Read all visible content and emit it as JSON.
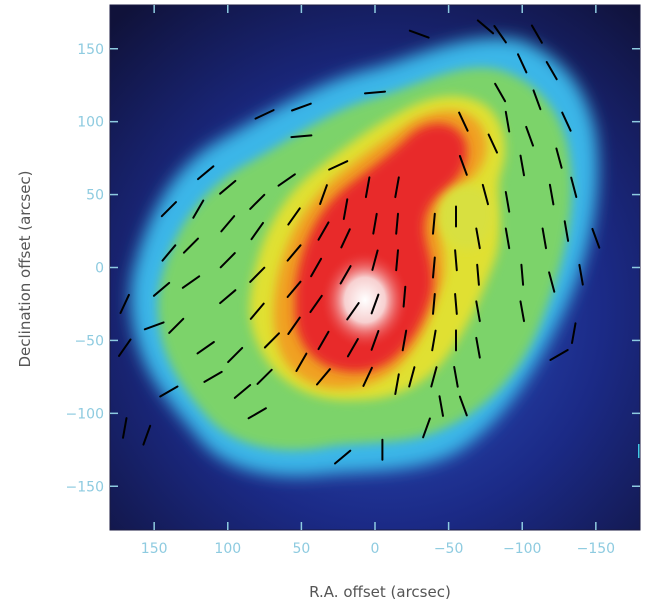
{
  "chart_data": {
    "type": "heatmap",
    "title": "",
    "xlabel": "R.A. offset (arcsec)",
    "ylabel": "Declination offset (arcsec)",
    "xlim": [
      180,
      -180
    ],
    "ylim": [
      -180,
      180
    ],
    "x_direction": "decreasing",
    "xticks": [
      150,
      100,
      50,
      0,
      -50,
      -100,
      -150
    ],
    "xtick_labels": [
      "150",
      "100",
      "50",
      "0",
      "−50",
      "−100",
      "−150"
    ],
    "yticks": [
      150,
      100,
      50,
      0,
      -50,
      -100,
      -150
    ],
    "ytick_labels": [
      "150",
      "100",
      "50",
      "0",
      "−50",
      "−100",
      "−150"
    ],
    "tick_label_color": "#8ecbe0",
    "colormap": [
      "#10123a",
      "#1b2a86",
      "#2f56c8",
      "#3ab6e8",
      "#70d888",
      "#88d040",
      "#e8e828",
      "#f0a020",
      "#e82a2a",
      "#ffffff"
    ],
    "grid": false,
    "legend": "none",
    "intensity_peak": {
      "x": 10,
      "y": -20
    },
    "vector_segments": [
      {
        "x": 170,
        "y": -110,
        "angle": 80
      },
      {
        "x": 155,
        "y": -115,
        "angle": 70
      },
      {
        "x": 140,
        "y": -85,
        "angle": 30
      },
      {
        "x": 170,
        "y": -55,
        "angle": 55
      },
      {
        "x": 170,
        "y": -25,
        "angle": 65
      },
      {
        "x": 150,
        "y": -40,
        "angle": 20
      },
      {
        "x": 145,
        "y": -15,
        "angle": 40
      },
      {
        "x": 140,
        "y": 10,
        "angle": 50
      },
      {
        "x": 140,
        "y": 40,
        "angle": 45
      },
      {
        "x": 135,
        "y": -40,
        "angle": 45
      },
      {
        "x": 125,
        "y": -10,
        "angle": 35
      },
      {
        "x": 125,
        "y": 15,
        "angle": 45
      },
      {
        "x": 120,
        "y": 40,
        "angle": 60
      },
      {
        "x": 115,
        "y": 65,
        "angle": 40
      },
      {
        "x": 100,
        "y": 55,
        "angle": 40
      },
      {
        "x": 100,
        "y": 30,
        "angle": 50
      },
      {
        "x": 100,
        "y": 5,
        "angle": 45
      },
      {
        "x": 100,
        "y": -20,
        "angle": 40
      },
      {
        "x": 115,
        "y": -55,
        "angle": 35
      },
      {
        "x": 110,
        "y": -75,
        "angle": 30
      },
      {
        "x": 95,
        "y": -60,
        "angle": 45
      },
      {
        "x": 90,
        "y": -85,
        "angle": 40
      },
      {
        "x": 80,
        "y": -100,
        "angle": 30
      },
      {
        "x": 75,
        "y": -75,
        "angle": 45
      },
      {
        "x": 70,
        "y": -50,
        "angle": 45
      },
      {
        "x": 80,
        "y": -30,
        "angle": 50
      },
      {
        "x": 80,
        "y": -5,
        "angle": 45
      },
      {
        "x": 80,
        "y": 25,
        "angle": 55
      },
      {
        "x": 80,
        "y": 45,
        "angle": 45
      },
      {
        "x": 60,
        "y": 60,
        "angle": 35
      },
      {
        "x": 55,
        "y": 35,
        "angle": 55
      },
      {
        "x": 55,
        "y": 10,
        "angle": 50
      },
      {
        "x": 55,
        "y": -15,
        "angle": 50
      },
      {
        "x": 55,
        "y": -40,
        "angle": 55
      },
      {
        "x": 50,
        "y": -65,
        "angle": 60
      },
      {
        "x": 35,
        "y": -75,
        "angle": 50
      },
      {
        "x": 35,
        "y": -50,
        "angle": 60
      },
      {
        "x": 40,
        "y": -25,
        "angle": 55
      },
      {
        "x": 40,
        "y": 0,
        "angle": 60
      },
      {
        "x": 35,
        "y": 25,
        "angle": 60
      },
      {
        "x": 35,
        "y": 50,
        "angle": 70
      },
      {
        "x": 20,
        "y": 40,
        "angle": 80
      },
      {
        "x": 20,
        "y": 20,
        "angle": 65
      },
      {
        "x": 20,
        "y": -5,
        "angle": 60
      },
      {
        "x": 15,
        "y": -30,
        "angle": 55
      },
      {
        "x": 15,
        "y": -55,
        "angle": 60
      },
      {
        "x": 5,
        "y": -75,
        "angle": 65
      },
      {
        "x": 0,
        "y": -50,
        "angle": 70
      },
      {
        "x": 0,
        "y": -25,
        "angle": 70
      },
      {
        "x": 0,
        "y": 5,
        "angle": 75
      },
      {
        "x": 0,
        "y": 30,
        "angle": 80
      },
      {
        "x": 5,
        "y": 55,
        "angle": 80
      },
      {
        "x": -15,
        "y": 55,
        "angle": 80
      },
      {
        "x": -15,
        "y": 30,
        "angle": 85
      },
      {
        "x": -15,
        "y": 5,
        "angle": 85
      },
      {
        "x": -20,
        "y": -20,
        "angle": 85
      },
      {
        "x": -20,
        "y": -50,
        "angle": 80
      },
      {
        "x": -25,
        "y": -75,
        "angle": 75
      },
      {
        "x": -40,
        "y": -75,
        "angle": 75
      },
      {
        "x": -40,
        "y": -50,
        "angle": 80
      },
      {
        "x": -40,
        "y": -25,
        "angle": 85
      },
      {
        "x": -40,
        "y": 0,
        "angle": 85
      },
      {
        "x": -40,
        "y": 30,
        "angle": 85
      },
      {
        "x": -55,
        "y": 35,
        "angle": 90
      },
      {
        "x": -55,
        "y": 5,
        "angle": 95
      },
      {
        "x": -55,
        "y": -25,
        "angle": 95
      },
      {
        "x": -55,
        "y": -50,
        "angle": 90
      },
      {
        "x": -55,
        "y": -75,
        "angle": 100
      },
      {
        "x": -70,
        "y": -55,
        "angle": 100
      },
      {
        "x": -70,
        "y": -30,
        "angle": 100
      },
      {
        "x": -70,
        "y": -5,
        "angle": 95
      },
      {
        "x": -70,
        "y": 20,
        "angle": 100
      },
      {
        "x": -75,
        "y": 50,
        "angle": 105
      },
      {
        "x": -60,
        "y": 70,
        "angle": 110
      },
      {
        "x": -80,
        "y": 85,
        "angle": 115
      },
      {
        "x": -60,
        "y": 100,
        "angle": 115
      },
      {
        "x": -85,
        "y": 120,
        "angle": 120
      },
      {
        "x": -100,
        "y": 140,
        "angle": 115
      },
      {
        "x": -110,
        "y": 115,
        "angle": 110
      },
      {
        "x": -105,
        "y": 90,
        "angle": 110
      },
      {
        "x": -100,
        "y": 70,
        "angle": 100
      },
      {
        "x": -90,
        "y": 45,
        "angle": 100
      },
      {
        "x": -90,
        "y": 20,
        "angle": 100
      },
      {
        "x": -100,
        "y": -5,
        "angle": 95
      },
      {
        "x": -100,
        "y": -30,
        "angle": 100
      },
      {
        "x": -120,
        "y": -10,
        "angle": 105
      },
      {
        "x": -115,
        "y": 20,
        "angle": 100
      },
      {
        "x": -120,
        "y": 50,
        "angle": 100
      },
      {
        "x": -125,
        "y": 75,
        "angle": 105
      },
      {
        "x": -130,
        "y": 100,
        "angle": 115
      },
      {
        "x": -135,
        "y": 55,
        "angle": 105
      },
      {
        "x": -130,
        "y": 25,
        "angle": 100
      },
      {
        "x": -140,
        "y": -5,
        "angle": 100
      },
      {
        "x": -135,
        "y": -45,
        "angle": 80
      },
      {
        "x": -125,
        "y": -60,
        "angle": 30
      },
      {
        "x": -120,
        "y": 135,
        "angle": 120
      },
      {
        "x": -110,
        "y": 160,
        "angle": 120
      },
      {
        "x": -85,
        "y": 160,
        "angle": 125
      },
      {
        "x": -90,
        "y": 100,
        "angle": 100
      },
      {
        "x": -30,
        "y": 160,
        "angle": 160
      },
      {
        "x": -75,
        "y": 165,
        "angle": 140
      },
      {
        "x": 75,
        "y": 105,
        "angle": 25
      },
      {
        "x": 50,
        "y": 110,
        "angle": 20
      },
      {
        "x": 50,
        "y": 90,
        "angle": 5
      },
      {
        "x": 0,
        "y": 120,
        "angle": 5
      },
      {
        "x": 25,
        "y": 70,
        "angle": 25
      },
      {
        "x": -35,
        "y": -110,
        "angle": 70
      },
      {
        "x": -5,
        "y": -125,
        "angle": 90
      },
      {
        "x": 22,
        "y": -130,
        "angle": 40
      },
      {
        "x": -45,
        "y": -95,
        "angle": 100
      },
      {
        "x": -60,
        "y": -95,
        "angle": 110
      },
      {
        "x": -15,
        "y": -80,
        "angle": 80
      },
      {
        "x": -150,
        "y": 20,
        "angle": 110
      }
    ]
  }
}
